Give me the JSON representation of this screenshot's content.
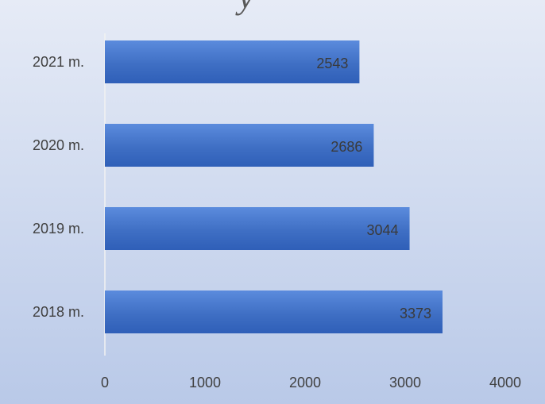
{
  "chart_data": {
    "type": "bar",
    "orientation": "horizontal",
    "title": "y",
    "categories": [
      "2021 m.",
      "2020 m.",
      "2019 m.",
      "2018 m."
    ],
    "values": [
      2543,
      2686,
      3044,
      3373
    ],
    "xlim": [
      0,
      4000
    ],
    "xticks": [
      0,
      1000,
      2000,
      3000,
      4000
    ],
    "xlabel": "",
    "ylabel": "",
    "grid": false,
    "data_labels": true,
    "bar_color": "#4472c4"
  }
}
